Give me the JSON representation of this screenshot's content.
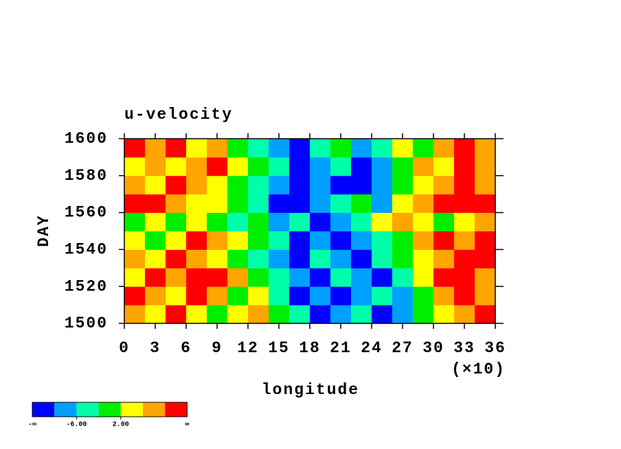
{
  "chart_data": {
    "type": "heatmap",
    "title": "u-velocity",
    "xlabel": "longitude",
    "ylabel": "DAY",
    "x_scale_label": "(×10)",
    "xlim": [
      0,
      360
    ],
    "ylim": [
      1500,
      1600
    ],
    "xticks": [
      {
        "value": 0,
        "label": "0"
      },
      {
        "value": 30,
        "label": "3"
      },
      {
        "value": 60,
        "label": "6"
      },
      {
        "value": 90,
        "label": "9"
      },
      {
        "value": 120,
        "label": "12"
      },
      {
        "value": 150,
        "label": "15"
      },
      {
        "value": 180,
        "label": "18"
      },
      {
        "value": 210,
        "label": "21"
      },
      {
        "value": 240,
        "label": "24"
      },
      {
        "value": 270,
        "label": "27"
      },
      {
        "value": 300,
        "label": "30"
      },
      {
        "value": 330,
        "label": "33"
      },
      {
        "value": 360,
        "label": "36"
      }
    ],
    "yticks": [
      1500,
      1520,
      1540,
      1560,
      1580,
      1600
    ],
    "x": [
      10,
      30,
      50,
      70,
      90,
      110,
      130,
      150,
      170,
      190,
      210,
      230,
      250,
      270,
      290,
      310,
      330,
      350
    ],
    "y": [
      1505,
      1515,
      1525,
      1535,
      1545,
      1555,
      1565,
      1575,
      1585,
      1595
    ],
    "z": [
      [
        8,
        4,
        12,
        4,
        0,
        4,
        8,
        0,
        -4,
        -12,
        -8,
        -4,
        -12,
        -8,
        0,
        4,
        8,
        12
      ],
      [
        12,
        8,
        4,
        12,
        8,
        0,
        4,
        -4,
        -12,
        -8,
        -12,
        -8,
        -4,
        -8,
        0,
        8,
        12,
        8
      ],
      [
        4,
        12,
        8,
        12,
        12,
        8,
        0,
        -4,
        -8,
        -12,
        -4,
        -8,
        -12,
        -4,
        4,
        12,
        12,
        8
      ],
      [
        8,
        4,
        12,
        8,
        4,
        0,
        -4,
        -8,
        -12,
        -4,
        -8,
        -12,
        -4,
        0,
        4,
        8,
        12,
        12
      ],
      [
        4,
        0,
        4,
        12,
        8,
        4,
        0,
        -4,
        -12,
        -8,
        -12,
        -8,
        -4,
        0,
        8,
        12,
        8,
        12
      ],
      [
        0,
        4,
        0,
        4,
        0,
        -4,
        0,
        -8,
        -4,
        -12,
        -8,
        -4,
        4,
        8,
        4,
        0,
        4,
        8
      ],
      [
        12,
        12,
        8,
        4,
        4,
        0,
        -4,
        -12,
        -12,
        -8,
        -4,
        0,
        -8,
        4,
        8,
        12,
        12,
        12
      ],
      [
        8,
        4,
        12,
        8,
        4,
        0,
        -4,
        -8,
        -12,
        -8,
        -12,
        -12,
        -8,
        0,
        4,
        8,
        12,
        8
      ],
      [
        4,
        8,
        4,
        8,
        12,
        4,
        0,
        -4,
        -12,
        -8,
        -4,
        -12,
        -8,
        0,
        8,
        4,
        12,
        8
      ],
      [
        12,
        8,
        12,
        4,
        8,
        0,
        -4,
        -8,
        -12,
        -4,
        0,
        -8,
        -4,
        4,
        0,
        8,
        12,
        8
      ]
    ],
    "colorbar": {
      "colors": [
        "#0000ff",
        "#00a0ff",
        "#00ffaa",
        "#00ee00",
        "#ffff00",
        "#ffa500",
        "#ff0000"
      ],
      "min_label": "-∞",
      "max_label": "∞",
      "ticks": [
        {
          "value": -6,
          "label": "-6.00"
        },
        {
          "value": 2,
          "label": "2.00"
        }
      ]
    }
  }
}
